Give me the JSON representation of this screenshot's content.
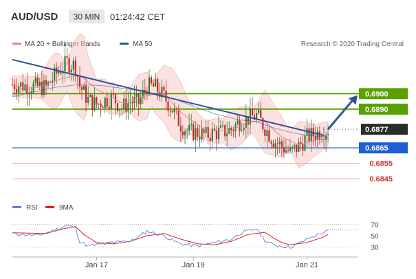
{
  "header": {
    "symbol": "AUD/USD",
    "timeframe": "30 MIN",
    "time": "01:24:42 CET"
  },
  "legend_main": [
    {
      "label": "MA 20 + Bollinger Bands",
      "color": "#f08080"
    },
    {
      "label": "MA 50",
      "color": "#2e5596"
    }
  ],
  "credit": "Research © 2020 Trading Central",
  "legend_rsi": [
    {
      "label": "RSI",
      "color": "#5b7fd6"
    },
    {
      "label": "9MA",
      "color": "#e31a1a"
    }
  ],
  "colors": {
    "candle_up": "#2e7d32",
    "candle_down": "#c62828",
    "resistance": "#5aa000",
    "support": "#1f5fd6",
    "minor_support": "#f0a0a0",
    "current": "#2b2b2b",
    "trend": "#2e5596",
    "bollinger": "#f9c9c9",
    "forecast": "#2e5596"
  },
  "chart_data": [
    {
      "type": "candlestick",
      "y_range": [
        0.6834,
        0.6925
      ],
      "x_ticks": [
        "Jan 17",
        "Jan 19",
        "Jan 21"
      ],
      "levels": [
        {
          "label": "0.6900",
          "value": 0.69,
          "style": "resistance"
        },
        {
          "label": "0.6890",
          "value": 0.689,
          "style": "resistance"
        },
        {
          "label": "0.6877",
          "value": 0.6877,
          "style": "current"
        },
        {
          "label": "0.6865",
          "value": 0.6865,
          "style": "support"
        },
        {
          "label": "0.6855",
          "value": 0.6855,
          "style": "minor_support"
        },
        {
          "label": "0.6845",
          "value": 0.6845,
          "style": "minor_support"
        }
      ],
      "trendline": [
        [
          0,
          0.6922
        ],
        [
          74,
          0.6873
        ]
      ],
      "forecast_arrow": [
        [
          75,
          0.6877
        ],
        [
          82,
          0.6899
        ]
      ],
      "price_path": [
        [
          0,
          0.6906
        ],
        [
          4,
          0.6905
        ],
        [
          8,
          0.6904
        ],
        [
          11,
          0.6915
        ],
        [
          13,
          0.692
        ],
        [
          15,
          0.6918
        ],
        [
          16,
          0.6905
        ],
        [
          18,
          0.6896
        ],
        [
          20,
          0.6893
        ],
        [
          22,
          0.6896
        ],
        [
          24,
          0.6897
        ],
        [
          26,
          0.6891
        ],
        [
          28,
          0.6895
        ],
        [
          30,
          0.6894
        ],
        [
          32,
          0.6905
        ],
        [
          34,
          0.6904
        ],
        [
          36,
          0.6898
        ],
        [
          38,
          0.689
        ],
        [
          40,
          0.688
        ],
        [
          42,
          0.6875
        ],
        [
          44,
          0.6875
        ],
        [
          46,
          0.6873
        ],
        [
          48,
          0.6875
        ],
        [
          50,
          0.6875
        ],
        [
          52,
          0.6877
        ],
        [
          54,
          0.6882
        ],
        [
          56,
          0.6884
        ],
        [
          58,
          0.6886
        ],
        [
          60,
          0.6878
        ],
        [
          62,
          0.687
        ],
        [
          64,
          0.6866
        ],
        [
          66,
          0.6862
        ],
        [
          68,
          0.6866
        ],
        [
          70,
          0.6872
        ],
        [
          72,
          0.6874
        ],
        [
          74,
          0.6876
        ],
        [
          75,
          0.6877
        ]
      ],
      "ma50_path": [
        [
          0,
          0.6898
        ],
        [
          10,
          0.6904
        ],
        [
          16,
          0.6906
        ],
        [
          22,
          0.6905
        ],
        [
          30,
          0.6902
        ],
        [
          36,
          0.6899
        ],
        [
          42,
          0.6893
        ],
        [
          48,
          0.6887
        ],
        [
          54,
          0.6883
        ],
        [
          58,
          0.6882
        ],
        [
          62,
          0.6878
        ],
        [
          66,
          0.6875
        ],
        [
          70,
          0.6873
        ],
        [
          75,
          0.6872
        ]
      ],
      "ma20_path": [
        [
          0,
          0.6905
        ],
        [
          6,
          0.6904
        ],
        [
          12,
          0.691
        ],
        [
          16,
          0.6912
        ],
        [
          20,
          0.6903
        ],
        [
          26,
          0.6894
        ],
        [
          32,
          0.6899
        ],
        [
          36,
          0.69
        ],
        [
          40,
          0.6888
        ],
        [
          46,
          0.6876
        ],
        [
          52,
          0.6876
        ],
        [
          56,
          0.6882
        ],
        [
          60,
          0.6882
        ],
        [
          64,
          0.6872
        ],
        [
          68,
          0.6867
        ],
        [
          72,
          0.687
        ],
        [
          75,
          0.6874
        ]
      ]
    },
    {
      "type": "line",
      "y_range": [
        20,
        80
      ],
      "y_ticks": [
        30,
        50,
        70
      ],
      "rsi_path": [
        [
          0,
          54
        ],
        [
          6,
          50
        ],
        [
          10,
          60
        ],
        [
          13,
          68
        ],
        [
          15,
          64
        ],
        [
          16,
          40
        ],
        [
          18,
          32
        ],
        [
          20,
          34
        ],
        [
          24,
          38
        ],
        [
          26,
          42
        ],
        [
          28,
          40
        ],
        [
          30,
          48
        ],
        [
          32,
          58
        ],
        [
          34,
          54
        ],
        [
          36,
          50
        ],
        [
          38,
          42
        ],
        [
          40,
          36
        ],
        [
          44,
          32
        ],
        [
          48,
          38
        ],
        [
          52,
          44
        ],
        [
          54,
          54
        ],
        [
          56,
          58
        ],
        [
          58,
          62
        ],
        [
          60,
          42
        ],
        [
          62,
          34
        ],
        [
          64,
          32
        ],
        [
          66,
          30
        ],
        [
          68,
          36
        ],
        [
          70,
          44
        ],
        [
          72,
          50
        ],
        [
          74,
          56
        ],
        [
          75,
          58
        ]
      ],
      "rsi_ma_path": [
        [
          0,
          55
        ],
        [
          8,
          54
        ],
        [
          12,
          62
        ],
        [
          15,
          66
        ],
        [
          17,
          52
        ],
        [
          20,
          38
        ],
        [
          24,
          36
        ],
        [
          28,
          40
        ],
        [
          32,
          50
        ],
        [
          36,
          54
        ],
        [
          40,
          44
        ],
        [
          44,
          36
        ],
        [
          48,
          34
        ],
        [
          52,
          40
        ],
        [
          56,
          52
        ],
        [
          60,
          56
        ],
        [
          62,
          46
        ],
        [
          64,
          38
        ],
        [
          66,
          34
        ],
        [
          70,
          38
        ],
        [
          74,
          48
        ],
        [
          75,
          52
        ]
      ]
    }
  ]
}
